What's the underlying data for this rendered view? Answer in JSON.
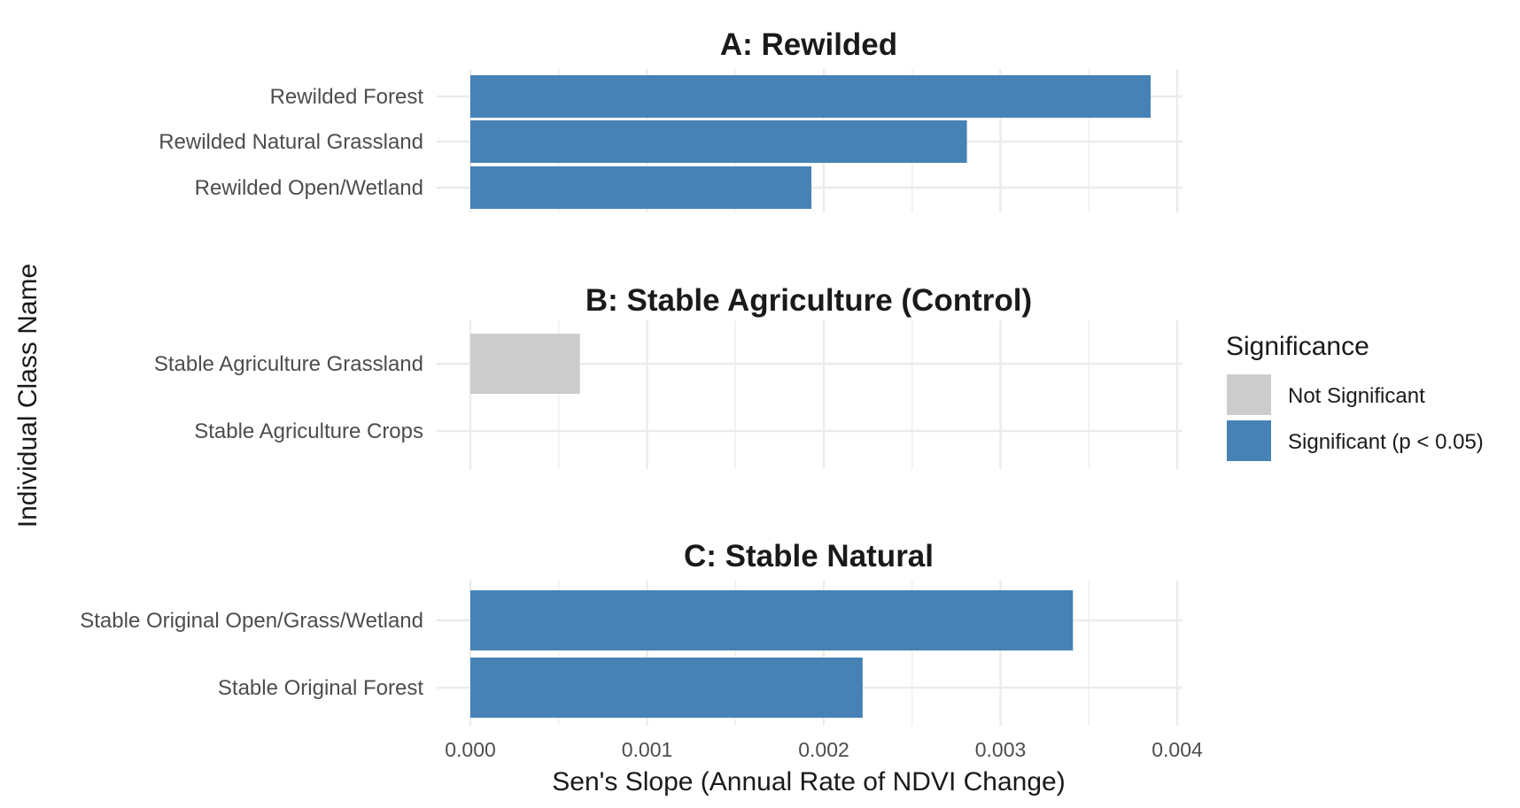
{
  "chart_data": {
    "type": "bar",
    "orientation": "horizontal",
    "xlabel": "Sen's Slope (Annual Rate of NDVI Change)",
    "ylabel": "Individual Class Name",
    "xlim": [
      0,
      0.004
    ],
    "xticks": [
      "0.000",
      "0.001",
      "0.002",
      "0.003",
      "0.004"
    ],
    "grid": true,
    "legend": {
      "title": "Significance",
      "position": "right",
      "entries": [
        {
          "label": "Not Significant",
          "color": "#cccccc"
        },
        {
          "label": "Significant (p < 0.05)",
          "color": "#4682b4"
        }
      ]
    },
    "panels": [
      {
        "title": "A: Rewilded",
        "categories": [
          "Rewilded Forest",
          "Rewilded Natural Grassland",
          "Rewilded Open/Wetland"
        ],
        "values": [
          0.00385,
          0.00281,
          0.00193
        ],
        "significance": [
          "Significant (p < 0.05)",
          "Significant (p < 0.05)",
          "Significant (p < 0.05)"
        ]
      },
      {
        "title": "B: Stable Agriculture (Control)",
        "categories": [
          "Stable Agriculture Grassland",
          "Stable Agriculture Crops"
        ],
        "values": [
          0.00062,
          0.0
        ],
        "significance": [
          "Not Significant",
          "Not Significant"
        ]
      },
      {
        "title": "C: Stable Natural",
        "categories": [
          "Stable Original Open/Grass/Wetland",
          "Stable Original Forest"
        ],
        "values": [
          0.00341,
          0.00222
        ],
        "significance": [
          "Significant (p < 0.05)",
          "Significant (p < 0.05)"
        ]
      }
    ]
  }
}
